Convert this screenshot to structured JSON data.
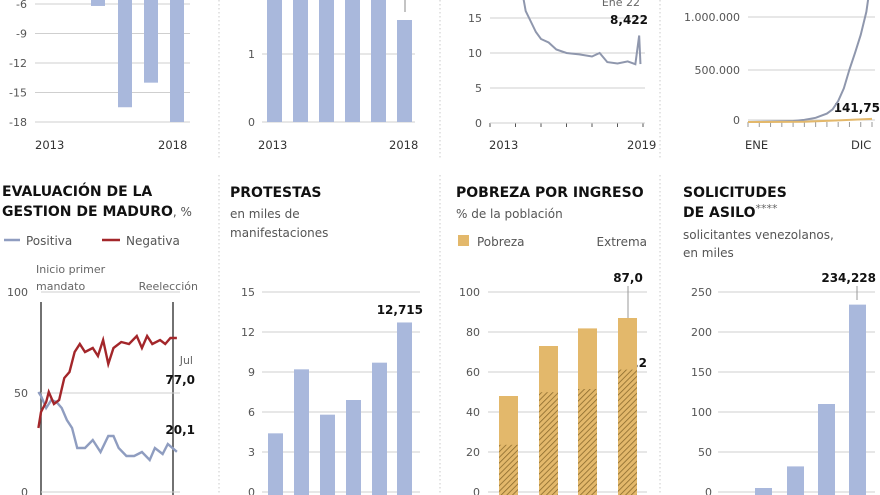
{
  "colors": {
    "bar_blue": "#a9b8dc",
    "gold": "#e3b86b",
    "gold_dark": "#b58d3e",
    "negative_red": "#a3262a",
    "positive_grey": "#8f9dc0",
    "line_grey": "#8f97ad"
  },
  "chart_data": [
    {
      "id": "p1",
      "type": "bar",
      "categories": [
        "2015",
        "2016",
        "2017",
        "2018"
      ],
      "values": [
        -6.2,
        -16.5,
        -14,
        -18
      ],
      "yticks": [
        "-6",
        "-9",
        "-12",
        "-15",
        "-18"
      ],
      "ylim": [
        -18,
        -6
      ],
      "xlabels": [
        "2013",
        "2018"
      ],
      "grid": true
    },
    {
      "id": "p2",
      "type": "bar",
      "categories": [
        "2013",
        "2014",
        "2015",
        "2016",
        "2017",
        "2018"
      ],
      "values": [
        3,
        3,
        3,
        3,
        3,
        1.5
      ],
      "yticks": [
        "0",
        "1"
      ],
      "xlabels": [
        "2013",
        "2018"
      ],
      "grid": true
    },
    {
      "id": "p3",
      "type": "line",
      "x": [
        2014.3,
        2014.4,
        2014.6,
        2014.8,
        2015.0,
        2015.3,
        2015.6,
        2016.0,
        2016.5,
        2017.0,
        2017.3,
        2017.6,
        2018.0,
        2018.4,
        2018.7,
        2018.85,
        2018.9
      ],
      "y": [
        18,
        16,
        14.5,
        13,
        12,
        11.5,
        10.5,
        10,
        9.8,
        9.5,
        10,
        8.7,
        8.5,
        8.8,
        8.4,
        12.5,
        8.422
      ],
      "yticks": [
        "0",
        "5",
        "10",
        "15"
      ],
      "xlim": [
        2013,
        2019
      ],
      "xlabels": [
        "2013",
        "2019"
      ],
      "annotation_date": "Ene 22",
      "annotation_value": "8,422",
      "grid": true
    },
    {
      "id": "p4",
      "type": "line",
      "yticks": [
        "0",
        "500.000",
        "1.000.000"
      ],
      "xlabels": [
        "ENE",
        "DIC"
      ],
      "series": [
        {
          "color": "#8f97ad",
          "x": [
            1,
            3,
            5,
            6,
            7,
            8,
            8.5,
            9,
            9.5,
            10,
            10.5,
            11,
            11.5,
            11.9
          ],
          "y": [
            0,
            3000,
            10000,
            20000,
            40000,
            80000,
            120000,
            200000,
            320000,
            500000,
            660000,
            830000,
            1050000,
            1350000
          ]
        },
        {
          "color": "#e3b86b",
          "x": [
            1,
            6,
            9,
            12
          ],
          "y": [
            0,
            2000,
            15000,
            30000
          ]
        }
      ],
      "annotation_value": "141,75",
      "grid": true
    },
    {
      "id": "p5",
      "type": "line",
      "title": "EVALUACIÓN DE LA",
      "title2": "GESTION DE MADURO",
      "title_unit": ", %",
      "legend": [
        "Positiva",
        "Negativa"
      ],
      "yticks": [
        "0",
        "50",
        "100"
      ],
      "annotations": {
        "start": [
          "Inicio primer",
          "mandato"
        ],
        "end": "Reelección",
        "month": "Jul",
        "negative_last": "77,0",
        "positive_last": "20,1"
      },
      "series": [
        {
          "name": "Positiva",
          "x": [
            2013.2,
            2013.3,
            2013.5,
            2013.7,
            2013.9,
            2014.1,
            2014.3,
            2014.5,
            2014.7,
            2015.0,
            2015.3,
            2015.6,
            2015.9,
            2016.1,
            2016.3,
            2016.6,
            2016.9,
            2017.2,
            2017.5,
            2017.7,
            2018.0,
            2018.2,
            2018.55
          ],
          "y": [
            50,
            48,
            42,
            46,
            45,
            42,
            36,
            32,
            22,
            22,
            26,
            20,
            28,
            28,
            22,
            18,
            18,
            20,
            16,
            22,
            19,
            24,
            20.1
          ]
        },
        {
          "name": "Negativa",
          "x": [
            2013.2,
            2013.3,
            2013.5,
            2013.6,
            2013.8,
            2014.0,
            2014.2,
            2014.4,
            2014.6,
            2014.8,
            2015.0,
            2015.3,
            2015.5,
            2015.7,
            2015.9,
            2016.1,
            2016.4,
            2016.7,
            2017.0,
            2017.2,
            2017.4,
            2017.6,
            2017.9,
            2018.1,
            2018.3,
            2018.55
          ],
          "y": [
            32,
            40,
            45,
            50,
            44,
            46,
            57,
            60,
            70,
            74,
            70,
            72,
            68,
            76,
            64,
            72,
            75,
            74,
            78,
            72,
            78,
            74,
            76,
            74,
            77,
            77
          ]
        }
      ],
      "grid": true
    },
    {
      "id": "p6",
      "type": "bar",
      "title": "PROTESTAS",
      "subtitle": [
        "en miles de",
        "manifestaciones"
      ],
      "values": [
        4.4,
        9.2,
        5.8,
        6.9,
        9.7,
        12.715
      ],
      "yticks": [
        "0",
        "3",
        "6",
        "9",
        "12",
        "15"
      ],
      "ylim": [
        0,
        15
      ],
      "data_label": "12,715",
      "grid": true
    },
    {
      "id": "p7",
      "type": "bar",
      "title": "POBREZA POR INGRESO",
      "subtitle": "% de la población",
      "legend": [
        "Pobreza",
        "Extrema"
      ],
      "series": [
        {
          "name": "Pobreza",
          "values": [
            48,
            73,
            81.8,
            87.0
          ]
        },
        {
          "name": "Extrema",
          "values": [
            23.6,
            49.9,
            51.5,
            61.2
          ]
        }
      ],
      "yticks": [
        "0",
        "20",
        "40",
        "60",
        "80",
        "100"
      ],
      "ylim": [
        0,
        100
      ],
      "data_labels": [
        "87,0",
        "61,2"
      ],
      "grid": true
    },
    {
      "id": "p8",
      "type": "bar",
      "title": "SOLICITUDES",
      "title2": "DE ASILO",
      "title_note": "****",
      "subtitle": [
        "solicitantes venezolanos,",
        "en miles"
      ],
      "values": [
        5,
        32,
        110,
        234.228
      ],
      "yticks": [
        "0",
        "50",
        "100",
        "150",
        "200",
        "250"
      ],
      "ylim": [
        0,
        250
      ],
      "data_label": "234,228",
      "grid": true
    }
  ]
}
